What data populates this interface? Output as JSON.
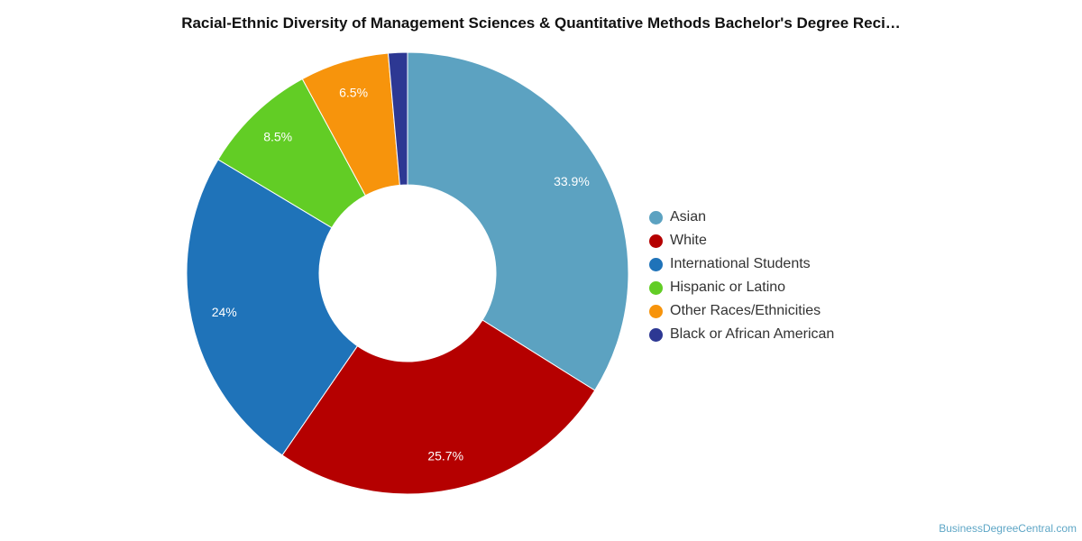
{
  "chart_data": {
    "type": "pie",
    "title": "Racial-Ethnic Diversity of Management Sciences & Quantitative Methods Bachelor's Degree Reci…",
    "donut": true,
    "legend_position": "right",
    "slices": [
      {
        "label": "Asian",
        "value": 33.9,
        "display": "33.9%",
        "color": "#5ca2c1"
      },
      {
        "label": "White",
        "value": 25.7,
        "display": "25.7%",
        "color": "#b50000"
      },
      {
        "label": "International Students",
        "value": 24.0,
        "display": "24%",
        "color": "#1f73b9"
      },
      {
        "label": "Hispanic or Latino",
        "value": 8.5,
        "display": "8.5%",
        "color": "#62cd25"
      },
      {
        "label": "Other Races/Ethnicities",
        "value": 6.5,
        "display": "6.5%",
        "color": "#f7940c"
      },
      {
        "label": "Black or African American",
        "value": 1.4,
        "display": "",
        "color": "#2d3893"
      }
    ]
  },
  "credit": "BusinessDegreeCentral.com"
}
